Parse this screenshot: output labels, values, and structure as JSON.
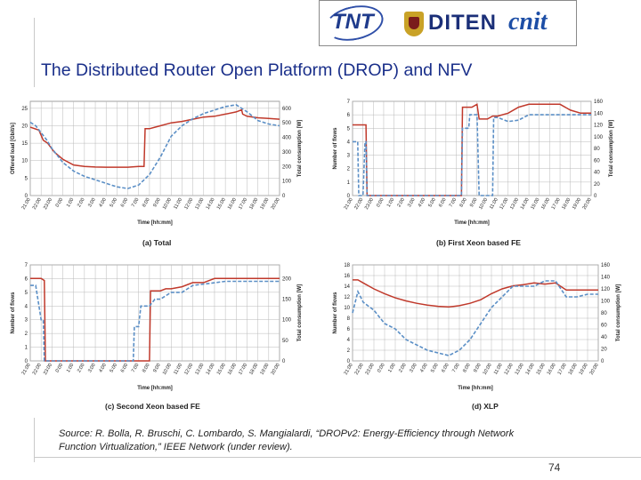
{
  "slide": {
    "title": "The Distributed Router Open Platform (DROP) and NFV",
    "source_line1": "Source: R. Bolla, R. Bruschi, C. Lombardo, S. Mangialardi, “DROPv2: Energy-Efficiency through Network",
    "source_line2": "Function Virtualization,” IEEE Network (under review).",
    "page_number": "74",
    "logos": {
      "tnt": "TNT",
      "diten": "DITEN",
      "cnit": "cnit"
    }
  },
  "colors": {
    "title": "#1a2f8a",
    "series_solid": "#c0392b",
    "series_dashed": "#5b8fc6",
    "grid": "#b9b9b9"
  },
  "chart_data": [
    {
      "type": "line",
      "caption": "(a)  Total",
      "xlabel": "Time [hh:mm]",
      "ylabel": "Offered load [Gbit/s]",
      "ylabel_right": "Total consumption [W]",
      "x_ticks": [
        "21:00",
        "22:00",
        "23:00",
        "0:00",
        "1:00",
        "2:00",
        "3:00",
        "4:00",
        "5:00",
        "6:00",
        "7:00",
        "8:00",
        "9:00",
        "10:00",
        "11:00",
        "12:00",
        "13:00",
        "14:00",
        "15:00",
        "16:00",
        "17:00",
        "18:00",
        "19:00",
        "20:00"
      ],
      "y_ticks": [
        0,
        5,
        10,
        15,
        20,
        25
      ],
      "ylim": [
        0,
        27
      ],
      "y2_ticks": [
        0,
        100,
        200,
        300,
        400,
        500,
        600
      ],
      "y2lim": [
        0,
        648
      ],
      "grid": true,
      "series": [
        {
          "style": "solid",
          "axis": "right",
          "points": [
            [
              0,
              470
            ],
            [
              0.8,
              450
            ],
            [
              1.2,
              380
            ],
            [
              1.6,
              360
            ],
            [
              2.2,
              300
            ],
            [
              3,
              250
            ],
            [
              4,
              210
            ],
            [
              5,
              200
            ],
            [
              6,
              196
            ],
            [
              7,
              195
            ],
            [
              8,
              195
            ],
            [
              9,
              195
            ],
            [
              10,
              200
            ],
            [
              10.5,
              200
            ],
            [
              10.6,
              460
            ],
            [
              11,
              460
            ],
            [
              11.5,
              470
            ],
            [
              12,
              480
            ],
            [
              13,
              500
            ],
            [
              14,
              510
            ],
            [
              15,
              525
            ],
            [
              16,
              540
            ],
            [
              17,
              545
            ],
            [
              18,
              560
            ],
            [
              19,
              575
            ],
            [
              19.5,
              590
            ],
            [
              19.6,
              560
            ],
            [
              20,
              545
            ],
            [
              21,
              535
            ],
            [
              22,
              530
            ],
            [
              23,
              525
            ]
          ]
        },
        {
          "style": "dashed",
          "axis": "left",
          "points": [
            [
              0,
              21
            ],
            [
              0.5,
              20
            ],
            [
              1,
              18
            ],
            [
              1.5,
              16
            ],
            [
              2,
              13.5
            ],
            [
              3,
              9.5
            ],
            [
              4,
              7
            ],
            [
              5,
              5.5
            ],
            [
              6,
              4.5
            ],
            [
              7,
              3.5
            ],
            [
              8,
              2.5
            ],
            [
              9,
              2
            ],
            [
              10,
              3
            ],
            [
              11,
              6
            ],
            [
              12,
              11
            ],
            [
              13,
              17
            ],
            [
              14,
              20
            ],
            [
              15,
              22
            ],
            [
              16,
              23.5
            ],
            [
              17,
              24.5
            ],
            [
              18,
              25.5
            ],
            [
              19,
              26
            ],
            [
              20,
              24
            ],
            [
              21,
              21.5
            ],
            [
              22,
              20.5
            ],
            [
              23,
              20
            ]
          ]
        }
      ]
    },
    {
      "type": "line",
      "caption": "(b)  First Xeon based FE",
      "xlabel": "Time [hh:mm]",
      "ylabel": "Number of flows",
      "ylabel_right": "Total consumption [W]",
      "x_ticks": [
        "21:00",
        "22:00",
        "23:00",
        "0:00",
        "1:00",
        "2:00",
        "3:00",
        "4:00",
        "5:00",
        "6:00",
        "7:00",
        "8:00",
        "9:00",
        "10:00",
        "11:00",
        "12:00",
        "13:00",
        "14:00",
        "15:00",
        "16:00",
        "17:00",
        "18:00",
        "19:00",
        "20:00"
      ],
      "y_ticks": [
        0,
        1,
        2,
        3,
        4,
        5,
        6,
        7
      ],
      "ylim": [
        0,
        7
      ],
      "y2_ticks": [
        0,
        20,
        40,
        60,
        80,
        100,
        120,
        140,
        160
      ],
      "y2lim": [
        0,
        160
      ],
      "grid": true,
      "series": [
        {
          "style": "solid",
          "axis": "right",
          "points": [
            [
              0,
              120
            ],
            [
              1,
              120
            ],
            [
              1.3,
              120
            ],
            [
              1.4,
              0
            ],
            [
              10.5,
              0
            ],
            [
              10.6,
              150
            ],
            [
              11,
              150
            ],
            [
              11.5,
              150
            ],
            [
              12,
              155
            ],
            [
              12.2,
              130
            ],
            [
              13,
              130
            ],
            [
              13.5,
              135
            ],
            [
              14,
              135
            ],
            [
              15,
              140
            ],
            [
              16,
              150
            ],
            [
              17,
              155
            ],
            [
              18,
              155
            ],
            [
              19,
              155
            ],
            [
              20,
              155
            ],
            [
              21,
              145
            ],
            [
              22,
              140
            ],
            [
              23,
              140
            ]
          ]
        },
        {
          "style": "dashed",
          "axis": "left",
          "points": [
            [
              0,
              4
            ],
            [
              0.5,
              4
            ],
            [
              0.6,
              0
            ],
            [
              1,
              0
            ],
            [
              1.2,
              4
            ],
            [
              1.3,
              4
            ],
            [
              1.4,
              0
            ],
            [
              10.5,
              0
            ],
            [
              10.6,
              5
            ],
            [
              11,
              5
            ],
            [
              11.2,
              5
            ],
            [
              11.3,
              6
            ],
            [
              11.5,
              6
            ],
            [
              12,
              6
            ],
            [
              12.2,
              0
            ],
            [
              13.5,
              0
            ],
            [
              13.6,
              5.8
            ],
            [
              14,
              5.8
            ],
            [
              15,
              5.5
            ],
            [
              16,
              5.6
            ],
            [
              17,
              6
            ],
            [
              18,
              6
            ],
            [
              19,
              6
            ],
            [
              20,
              6
            ],
            [
              21,
              6
            ],
            [
              22,
              6
            ],
            [
              23,
              6
            ]
          ]
        }
      ]
    },
    {
      "type": "line",
      "caption": "(c)  Second Xeon based FE",
      "xlabel": "Time [hh:mm]",
      "ylabel": "Number of flows",
      "ylabel_right": "Total consumption [W]",
      "x_ticks": [
        "21:00",
        "22:00",
        "23:00",
        "0:00",
        "1:00",
        "2:00",
        "3:00",
        "4:00",
        "5:00",
        "6:00",
        "7:00",
        "8:00",
        "9:00",
        "10:00",
        "11:00",
        "12:00",
        "13:00",
        "14:00",
        "15:00",
        "16:00",
        "17:00",
        "18:00",
        "19:00",
        "20:00"
      ],
      "y_ticks": [
        0,
        1,
        2,
        3,
        4,
        5,
        6,
        7
      ],
      "ylim": [
        0,
        7
      ],
      "y2_ticks": [
        0,
        50,
        100,
        150,
        200
      ],
      "y2lim": [
        0,
        233
      ],
      "grid": true,
      "series": [
        {
          "style": "solid",
          "axis": "right",
          "points": [
            [
              0,
              200
            ],
            [
              0.5,
              200
            ],
            [
              1,
              200
            ],
            [
              1.3,
              195
            ],
            [
              1.4,
              0
            ],
            [
              11,
              0
            ],
            [
              11.1,
              170
            ],
            [
              12,
              170
            ],
            [
              12.5,
              175
            ],
            [
              13,
              175
            ],
            [
              14,
              180
            ],
            [
              15,
              190
            ],
            [
              16,
              190
            ],
            [
              17,
              200
            ],
            [
              18,
              200
            ],
            [
              19,
              200
            ],
            [
              20,
              200
            ],
            [
              21,
              200
            ],
            [
              22,
              200
            ],
            [
              23,
              200
            ]
          ]
        },
        {
          "style": "dashed",
          "axis": "left",
          "points": [
            [
              0,
              5.5
            ],
            [
              0.5,
              5.5
            ],
            [
              1,
              3
            ],
            [
              1.2,
              3
            ],
            [
              1.3,
              0
            ],
            [
              9.5,
              0
            ],
            [
              9.6,
              2.5
            ],
            [
              10,
              2.5
            ],
            [
              10.2,
              4
            ],
            [
              11,
              4
            ],
            [
              11.5,
              4.5
            ],
            [
              12,
              4.5
            ],
            [
              13,
              5
            ],
            [
              14,
              5
            ],
            [
              15,
              5.5
            ],
            [
              16,
              5.6
            ],
            [
              17,
              5.7
            ],
            [
              18,
              5.8
            ],
            [
              19,
              5.8
            ],
            [
              20,
              5.8
            ],
            [
              21,
              5.8
            ],
            [
              22,
              5.8
            ],
            [
              23,
              5.8
            ]
          ]
        }
      ]
    },
    {
      "type": "line",
      "caption": "(d)  XLP",
      "xlabel": "Time [hh:mm]",
      "ylabel": "Number of flows",
      "ylabel_right": "Total consumption [W]",
      "x_ticks": [
        "21:00",
        "22:00",
        "23:00",
        "0:00",
        "1:00",
        "2:00",
        "3:00",
        "4:00",
        "5:00",
        "6:00",
        "7:00",
        "8:00",
        "9:00",
        "10:00",
        "11:00",
        "12:00",
        "13:00",
        "14:00",
        "15:00",
        "16:00",
        "17:00",
        "18:00",
        "19:00",
        "20:00"
      ],
      "y_ticks": [
        0,
        2,
        4,
        6,
        8,
        10,
        12,
        14,
        16,
        18
      ],
      "ylim": [
        0,
        18
      ],
      "y2_ticks": [
        0,
        20,
        40,
        60,
        80,
        100,
        120,
        140,
        160
      ],
      "y2lim": [
        0,
        160
      ],
      "grid": true,
      "series": [
        {
          "style": "solid",
          "axis": "right",
          "points": [
            [
              0,
              135
            ],
            [
              0.5,
              135
            ],
            [
              1,
              130
            ],
            [
              2,
              120
            ],
            [
              3,
              112
            ],
            [
              4,
              105
            ],
            [
              5,
              100
            ],
            [
              6,
              96
            ],
            [
              7,
              93
            ],
            [
              8,
              91
            ],
            [
              9,
              90
            ],
            [
              10,
              92
            ],
            [
              11,
              96
            ],
            [
              12,
              102
            ],
            [
              13,
              112
            ],
            [
              14,
              120
            ],
            [
              15,
              125
            ],
            [
              16,
              127
            ],
            [
              17,
              130
            ],
            [
              18,
              128
            ],
            [
              19,
              130
            ],
            [
              20,
              118
            ],
            [
              21,
              118
            ],
            [
              22,
              118
            ],
            [
              23,
              118
            ]
          ]
        },
        {
          "style": "dashed",
          "axis": "left",
          "points": [
            [
              0,
              9
            ],
            [
              0.5,
              13
            ],
            [
              1,
              11
            ],
            [
              2,
              9.5
            ],
            [
              3,
              7
            ],
            [
              4,
              6
            ],
            [
              5,
              4
            ],
            [
              6,
              3
            ],
            [
              7,
              2
            ],
            [
              8,
              1.5
            ],
            [
              9,
              1
            ],
            [
              10,
              2
            ],
            [
              11,
              4
            ],
            [
              12,
              7
            ],
            [
              13,
              10
            ],
            [
              14,
              12
            ],
            [
              15,
              14
            ],
            [
              16,
              14
            ],
            [
              17,
              14
            ],
            [
              18,
              15
            ],
            [
              19,
              15
            ],
            [
              20,
              12
            ],
            [
              21,
              12
            ],
            [
              22,
              12.5
            ],
            [
              23,
              12.5
            ]
          ]
        }
      ]
    }
  ]
}
